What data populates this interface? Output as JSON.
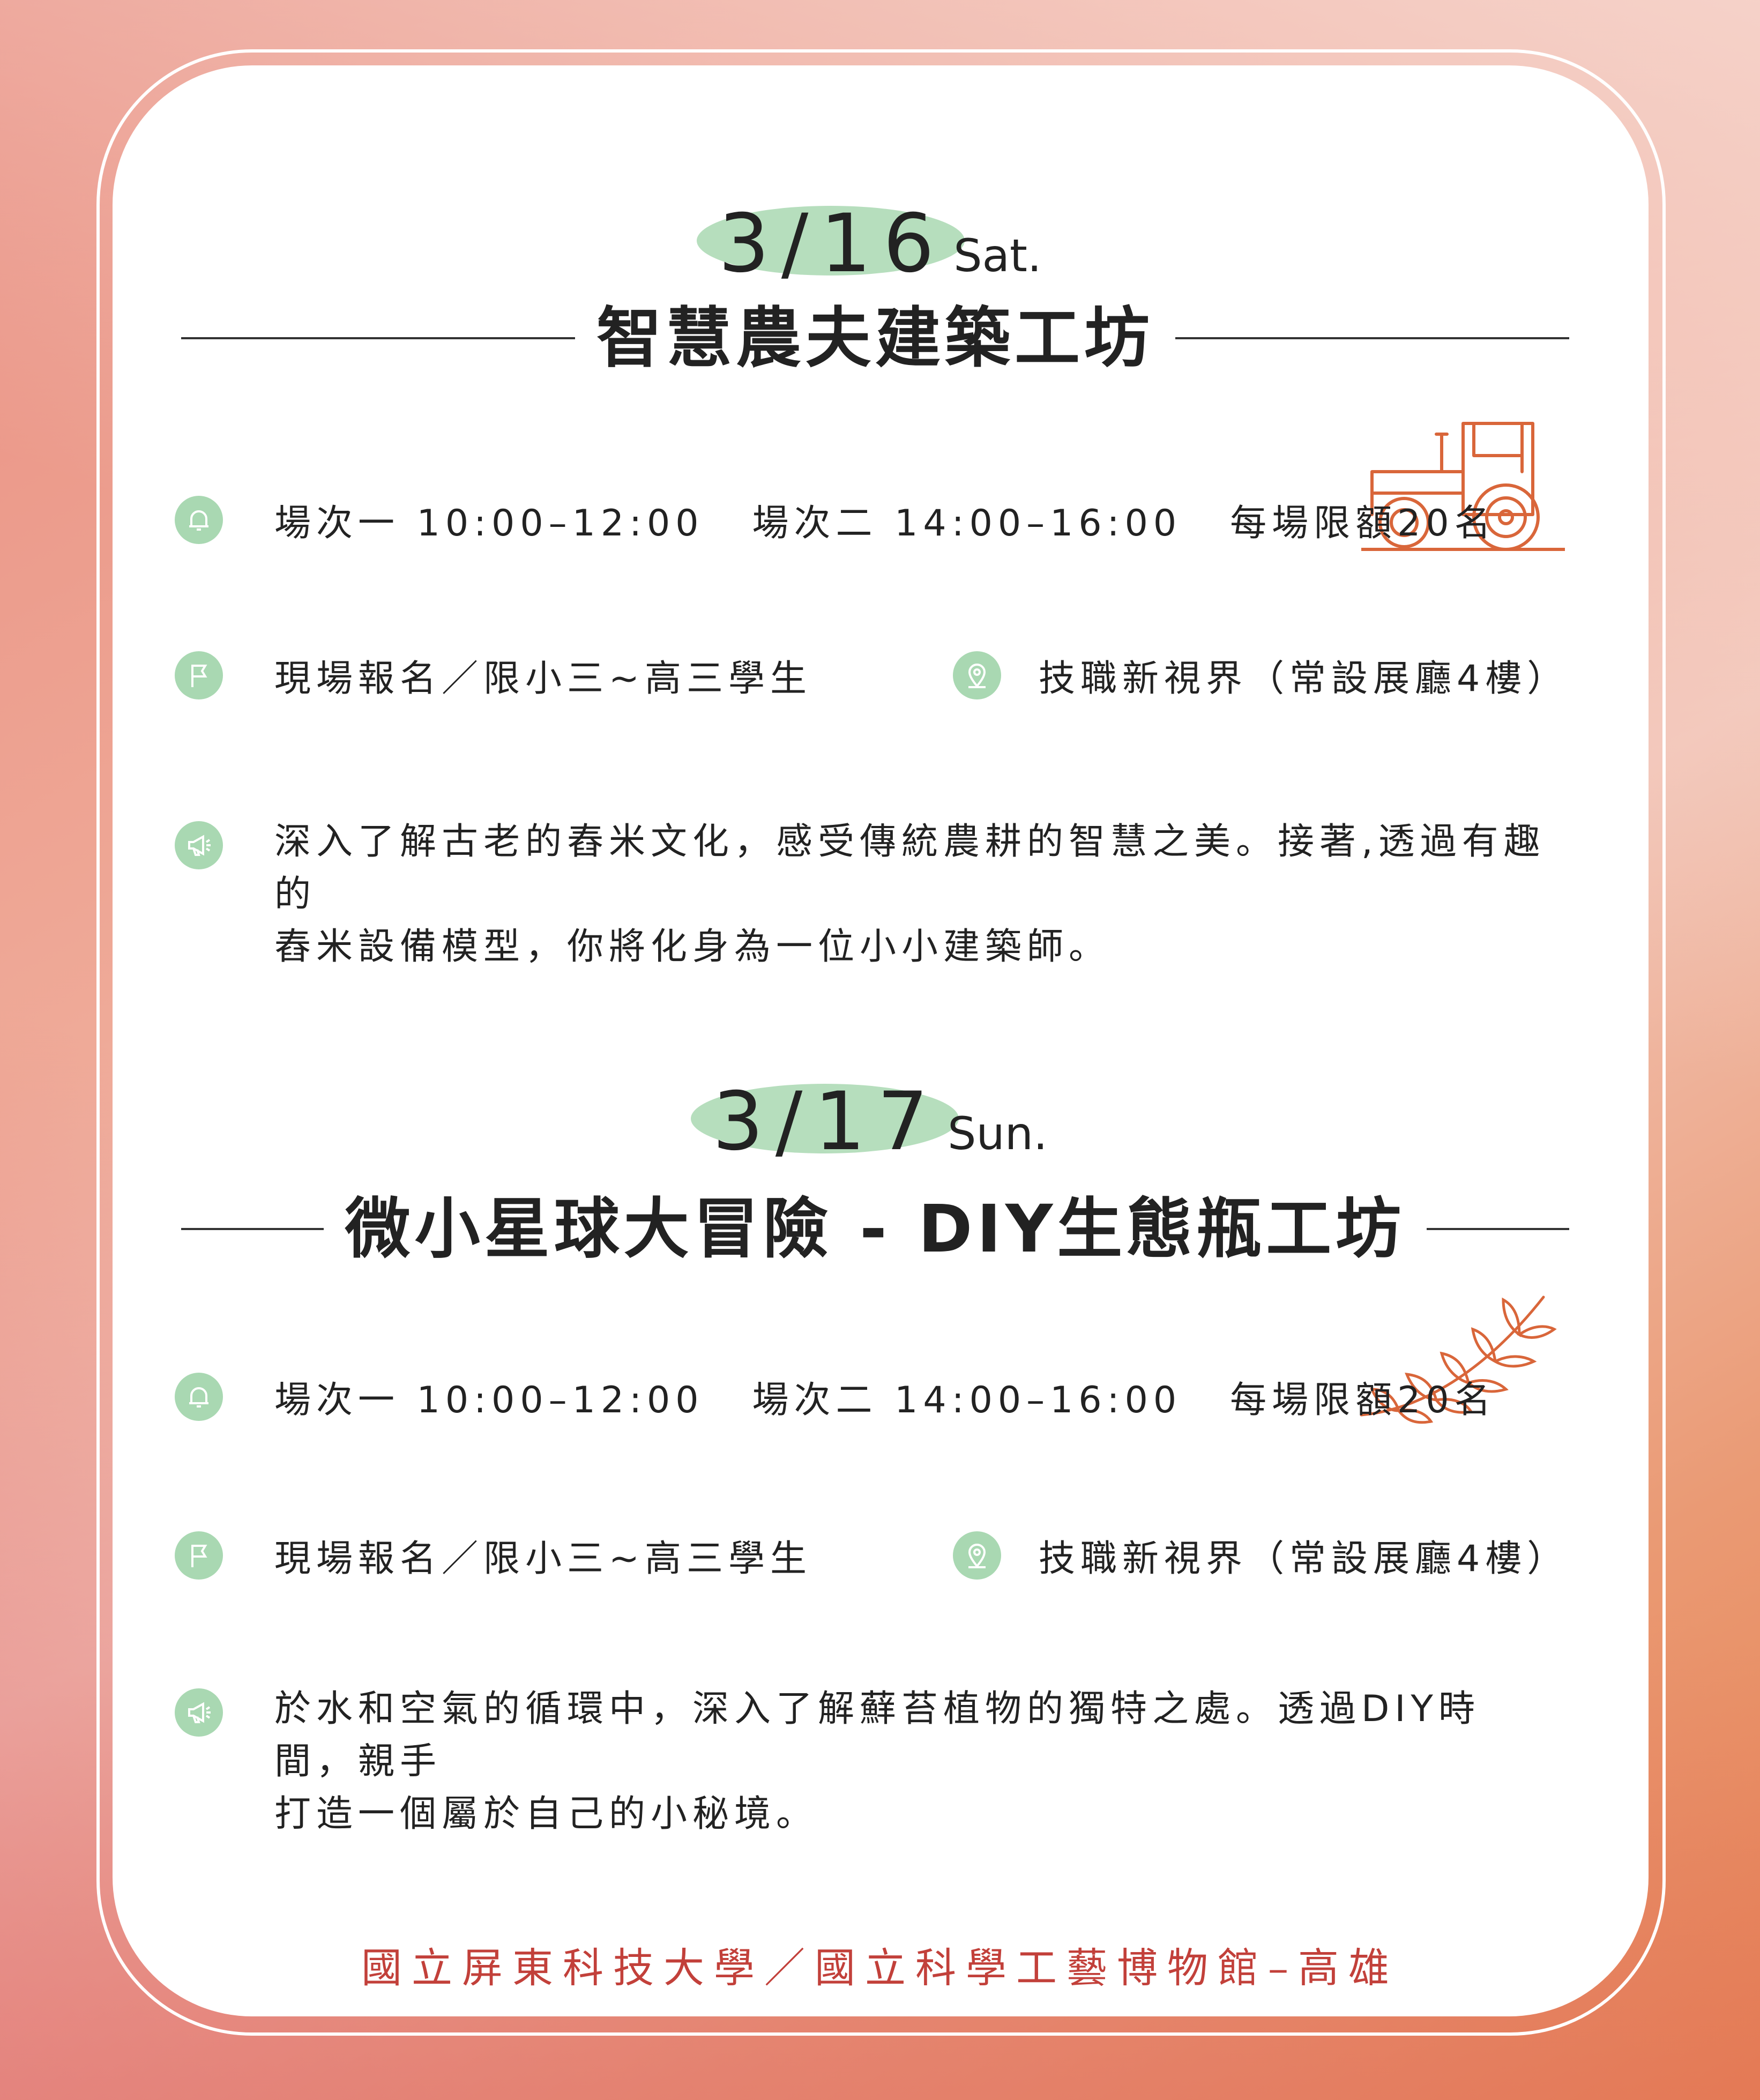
{
  "events": [
    {
      "date": "3/16",
      "weekday": "Sat.",
      "title": "智慧農夫建築工坊",
      "session1": "場次一 10:00–12:00",
      "session2": "場次二 14:00–16:00",
      "capacity": "每場限額20名",
      "registration": "現場報名／限小三~高三學生",
      "location": "技職新視界（常設展廳4樓）",
      "description_line1": "深入了解古老的舂米文化，感受傳統農耕的智慧之美。接著,透過有趣的",
      "description_line2": "舂米設備模型，你將化身為一位小小建築師。",
      "deco_icon": "tractor-icon"
    },
    {
      "date": "3/17",
      "weekday": "Sun.",
      "title": "微小星球大冒險 - DIY生態瓶工坊",
      "session1": "場次一 10:00–12:00",
      "session2": "場次二 14:00–16:00",
      "capacity": "每場限額20名",
      "registration": "現場報名／限小三~高三學生",
      "location": "技職新視界（常設展廳4樓）",
      "description_line1": "於水和空氣的循環中，深入了解蘚苔植物的獨特之處。透過DIY時間，親手",
      "description_line2": "打造一個屬於自己的小秘境。",
      "deco_icon": "leaf-branch-icon"
    }
  ],
  "footer": "國立屏東科技大學／國立科學工藝博物館–高雄",
  "colors": {
    "accent_green": "#a9d8b2",
    "footer_red": "#c2403a",
    "deco_orange": "#d9663a",
    "text": "#222222"
  },
  "icons": {
    "session": "bell-icon",
    "registration": "flag-icon",
    "location": "map-pin-icon",
    "description": "megaphone-icon"
  }
}
